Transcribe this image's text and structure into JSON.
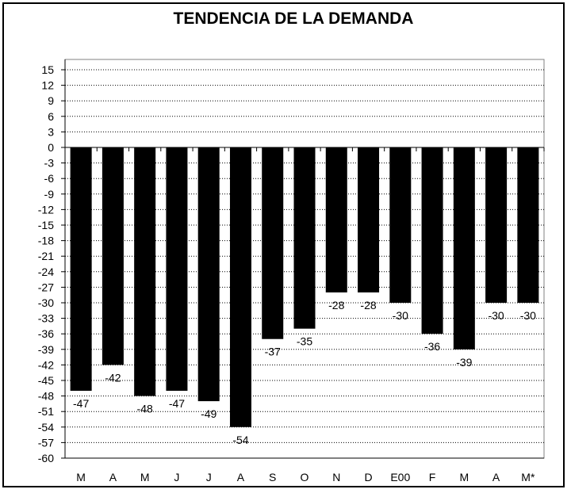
{
  "chart_data": {
    "type": "bar",
    "title": "TENDENCIA DE LA DEMANDA",
    "categories": [
      "M",
      "A",
      "M",
      "J",
      "J",
      "A",
      "S",
      "O",
      "N",
      "D",
      "E00",
      "F",
      "M",
      "A",
      "M*"
    ],
    "values": [
      -47,
      -42,
      -48,
      -47,
      -49,
      -54,
      -37,
      -35,
      -28,
      -28,
      -30,
      -36,
      -39,
      -30,
      -30
    ],
    "data_labels": [
      "-47",
      "-42",
      "-48",
      "-47",
      "-49",
      "-54",
      "-37",
      "-35",
      "-28",
      "-28",
      "-30",
      "-36",
      "-39",
      "-30",
      "-30"
    ],
    "ylim": [
      -60,
      15
    ],
    "ytick_step": 3,
    "yticks": [
      "15",
      "12",
      "9",
      "6",
      "3",
      "0",
      "-3",
      "-6",
      "-9",
      "-12",
      "-15",
      "-18",
      "-21",
      "-24",
      "-27",
      "-30",
      "-33",
      "-36",
      "-39",
      "-42",
      "-45",
      "-48",
      "-51",
      "-54",
      "-57",
      "-60"
    ],
    "xlabel": "",
    "ylabel": "",
    "grid": true,
    "legend": "none",
    "bar_color": "#000000",
    "grid_color": "#000000"
  }
}
